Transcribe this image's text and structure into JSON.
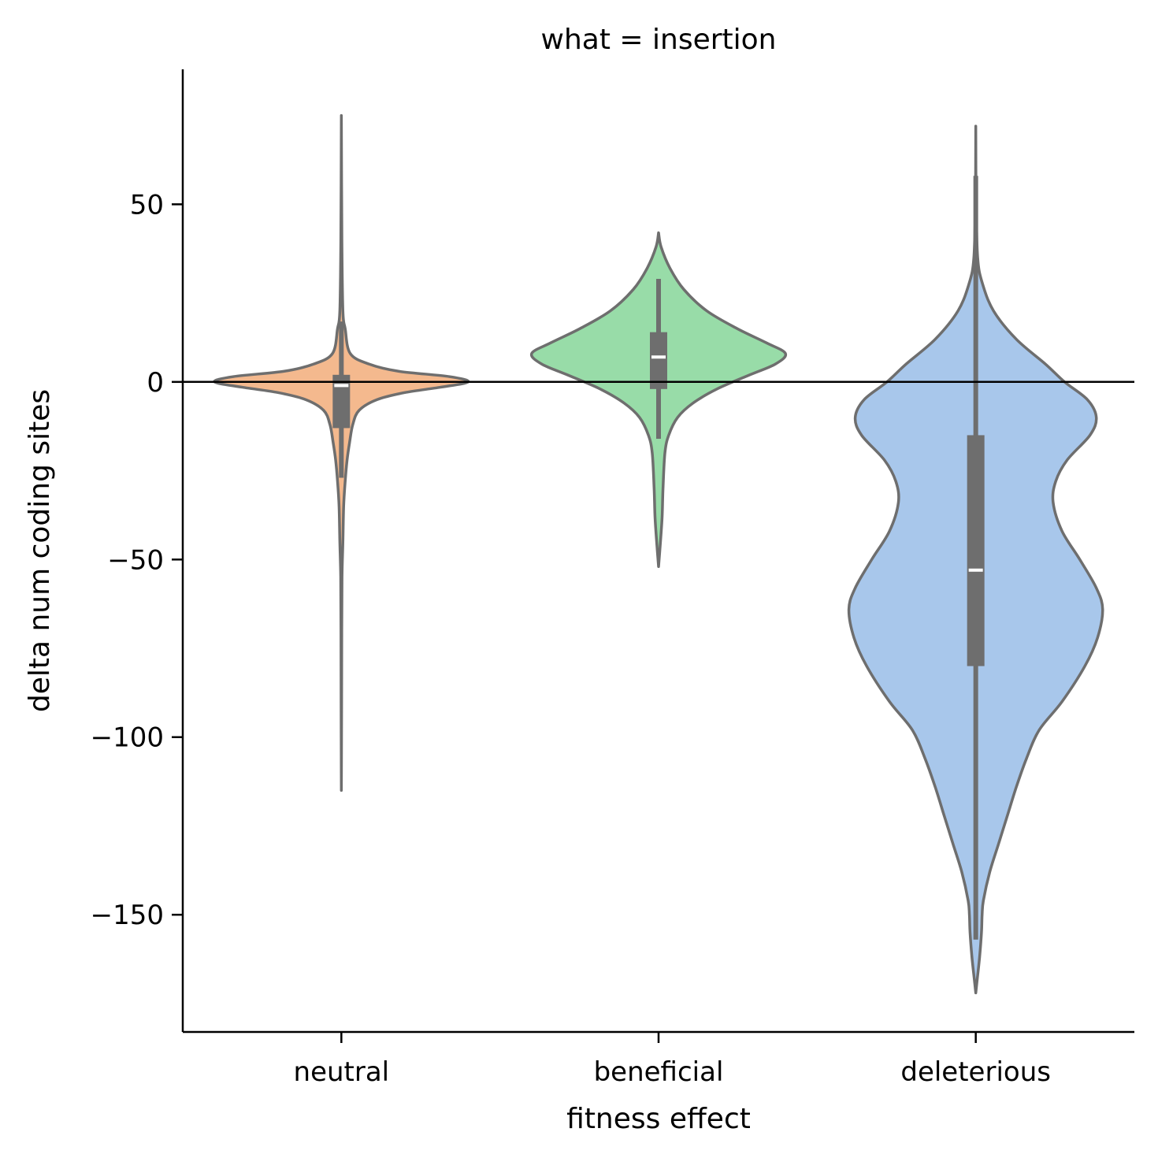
{
  "chart_data": {
    "type": "violin",
    "title": "what = insertion",
    "xlabel": "fitness effect",
    "ylabel": "delta num coding sites",
    "categories": [
      "neutral",
      "beneficial",
      "deleterious"
    ],
    "colors": {
      "neutral": "#f4b98e",
      "beneficial": "#98dca8",
      "deleterious": "#a8c7eb",
      "outline": "#6e6e6e",
      "box": "#6e6e6e",
      "median": "#ffffff"
    },
    "ylim": [
      -183,
      88
    ],
    "yticks": [
      50,
      0,
      -50,
      -100,
      -150
    ],
    "ytick_labels": [
      "50",
      "0",
      "−50",
      "−100",
      "−150"
    ],
    "reference_line_y": 0,
    "series": [
      {
        "category": "neutral",
        "min": -115,
        "max": 75,
        "q1": -13,
        "median": -1,
        "q3": 2,
        "whisker_low": -27,
        "whisker_high": 17,
        "density": [
          [
            75,
            0.0
          ],
          [
            40,
            0.004
          ],
          [
            20,
            0.012
          ],
          [
            15,
            0.03
          ],
          [
            8,
            0.07
          ],
          [
            5,
            0.22
          ],
          [
            3,
            0.45
          ],
          [
            1.5,
            0.85
          ],
          [
            0,
            1.0
          ],
          [
            -1.5,
            0.78
          ],
          [
            -3,
            0.5
          ],
          [
            -5,
            0.28
          ],
          [
            -8,
            0.14
          ],
          [
            -12,
            0.09
          ],
          [
            -17,
            0.065
          ],
          [
            -22,
            0.045
          ],
          [
            -28,
            0.03
          ],
          [
            -35,
            0.018
          ],
          [
            -45,
            0.012
          ],
          [
            -55,
            0.005
          ],
          [
            -70,
            0.003
          ],
          [
            -90,
            0.002
          ],
          [
            -115,
            0.0
          ]
        ]
      },
      {
        "category": "beneficial",
        "min": -52,
        "max": 42,
        "q1": -2,
        "median": 7,
        "q3": 14,
        "whisker_low": -16,
        "whisker_high": 29,
        "density": [
          [
            42,
            0.0
          ],
          [
            38,
            0.02
          ],
          [
            32,
            0.09
          ],
          [
            26,
            0.2
          ],
          [
            20,
            0.38
          ],
          [
            15,
            0.62
          ],
          [
            11,
            0.85
          ],
          [
            8,
            1.0
          ],
          [
            5,
            0.92
          ],
          [
            2,
            0.72
          ],
          [
            -2,
            0.46
          ],
          [
            -6,
            0.27
          ],
          [
            -10,
            0.15
          ],
          [
            -15,
            0.08
          ],
          [
            -20,
            0.05
          ],
          [
            -30,
            0.035
          ],
          [
            -38,
            0.028
          ],
          [
            -45,
            0.015
          ],
          [
            -52,
            0.0
          ]
        ]
      },
      {
        "category": "deleterious",
        "min": -172,
        "max": 72,
        "q1": -80,
        "median": -53,
        "q3": -15,
        "whisker_low": -157,
        "whisker_high": 58,
        "density": [
          [
            72,
            0.0
          ],
          [
            50,
            0.003
          ],
          [
            35,
            0.015
          ],
          [
            28,
            0.05
          ],
          [
            20,
            0.14
          ],
          [
            12,
            0.32
          ],
          [
            5,
            0.55
          ],
          [
            0,
            0.7
          ],
          [
            -5,
            0.88
          ],
          [
            -10,
            0.95
          ],
          [
            -15,
            0.9
          ],
          [
            -22,
            0.72
          ],
          [
            -28,
            0.63
          ],
          [
            -34,
            0.61
          ],
          [
            -42,
            0.68
          ],
          [
            -50,
            0.82
          ],
          [
            -58,
            0.95
          ],
          [
            -64,
            1.0
          ],
          [
            -72,
            0.96
          ],
          [
            -80,
            0.86
          ],
          [
            -90,
            0.68
          ],
          [
            -98,
            0.5
          ],
          [
            -106,
            0.4
          ],
          [
            -114,
            0.32
          ],
          [
            -122,
            0.25
          ],
          [
            -130,
            0.18
          ],
          [
            -138,
            0.11
          ],
          [
            -146,
            0.06
          ],
          [
            -150,
            0.05
          ],
          [
            -155,
            0.045
          ],
          [
            -162,
            0.03
          ],
          [
            -168,
            0.012
          ],
          [
            -172,
            0.0
          ]
        ]
      }
    ]
  }
}
